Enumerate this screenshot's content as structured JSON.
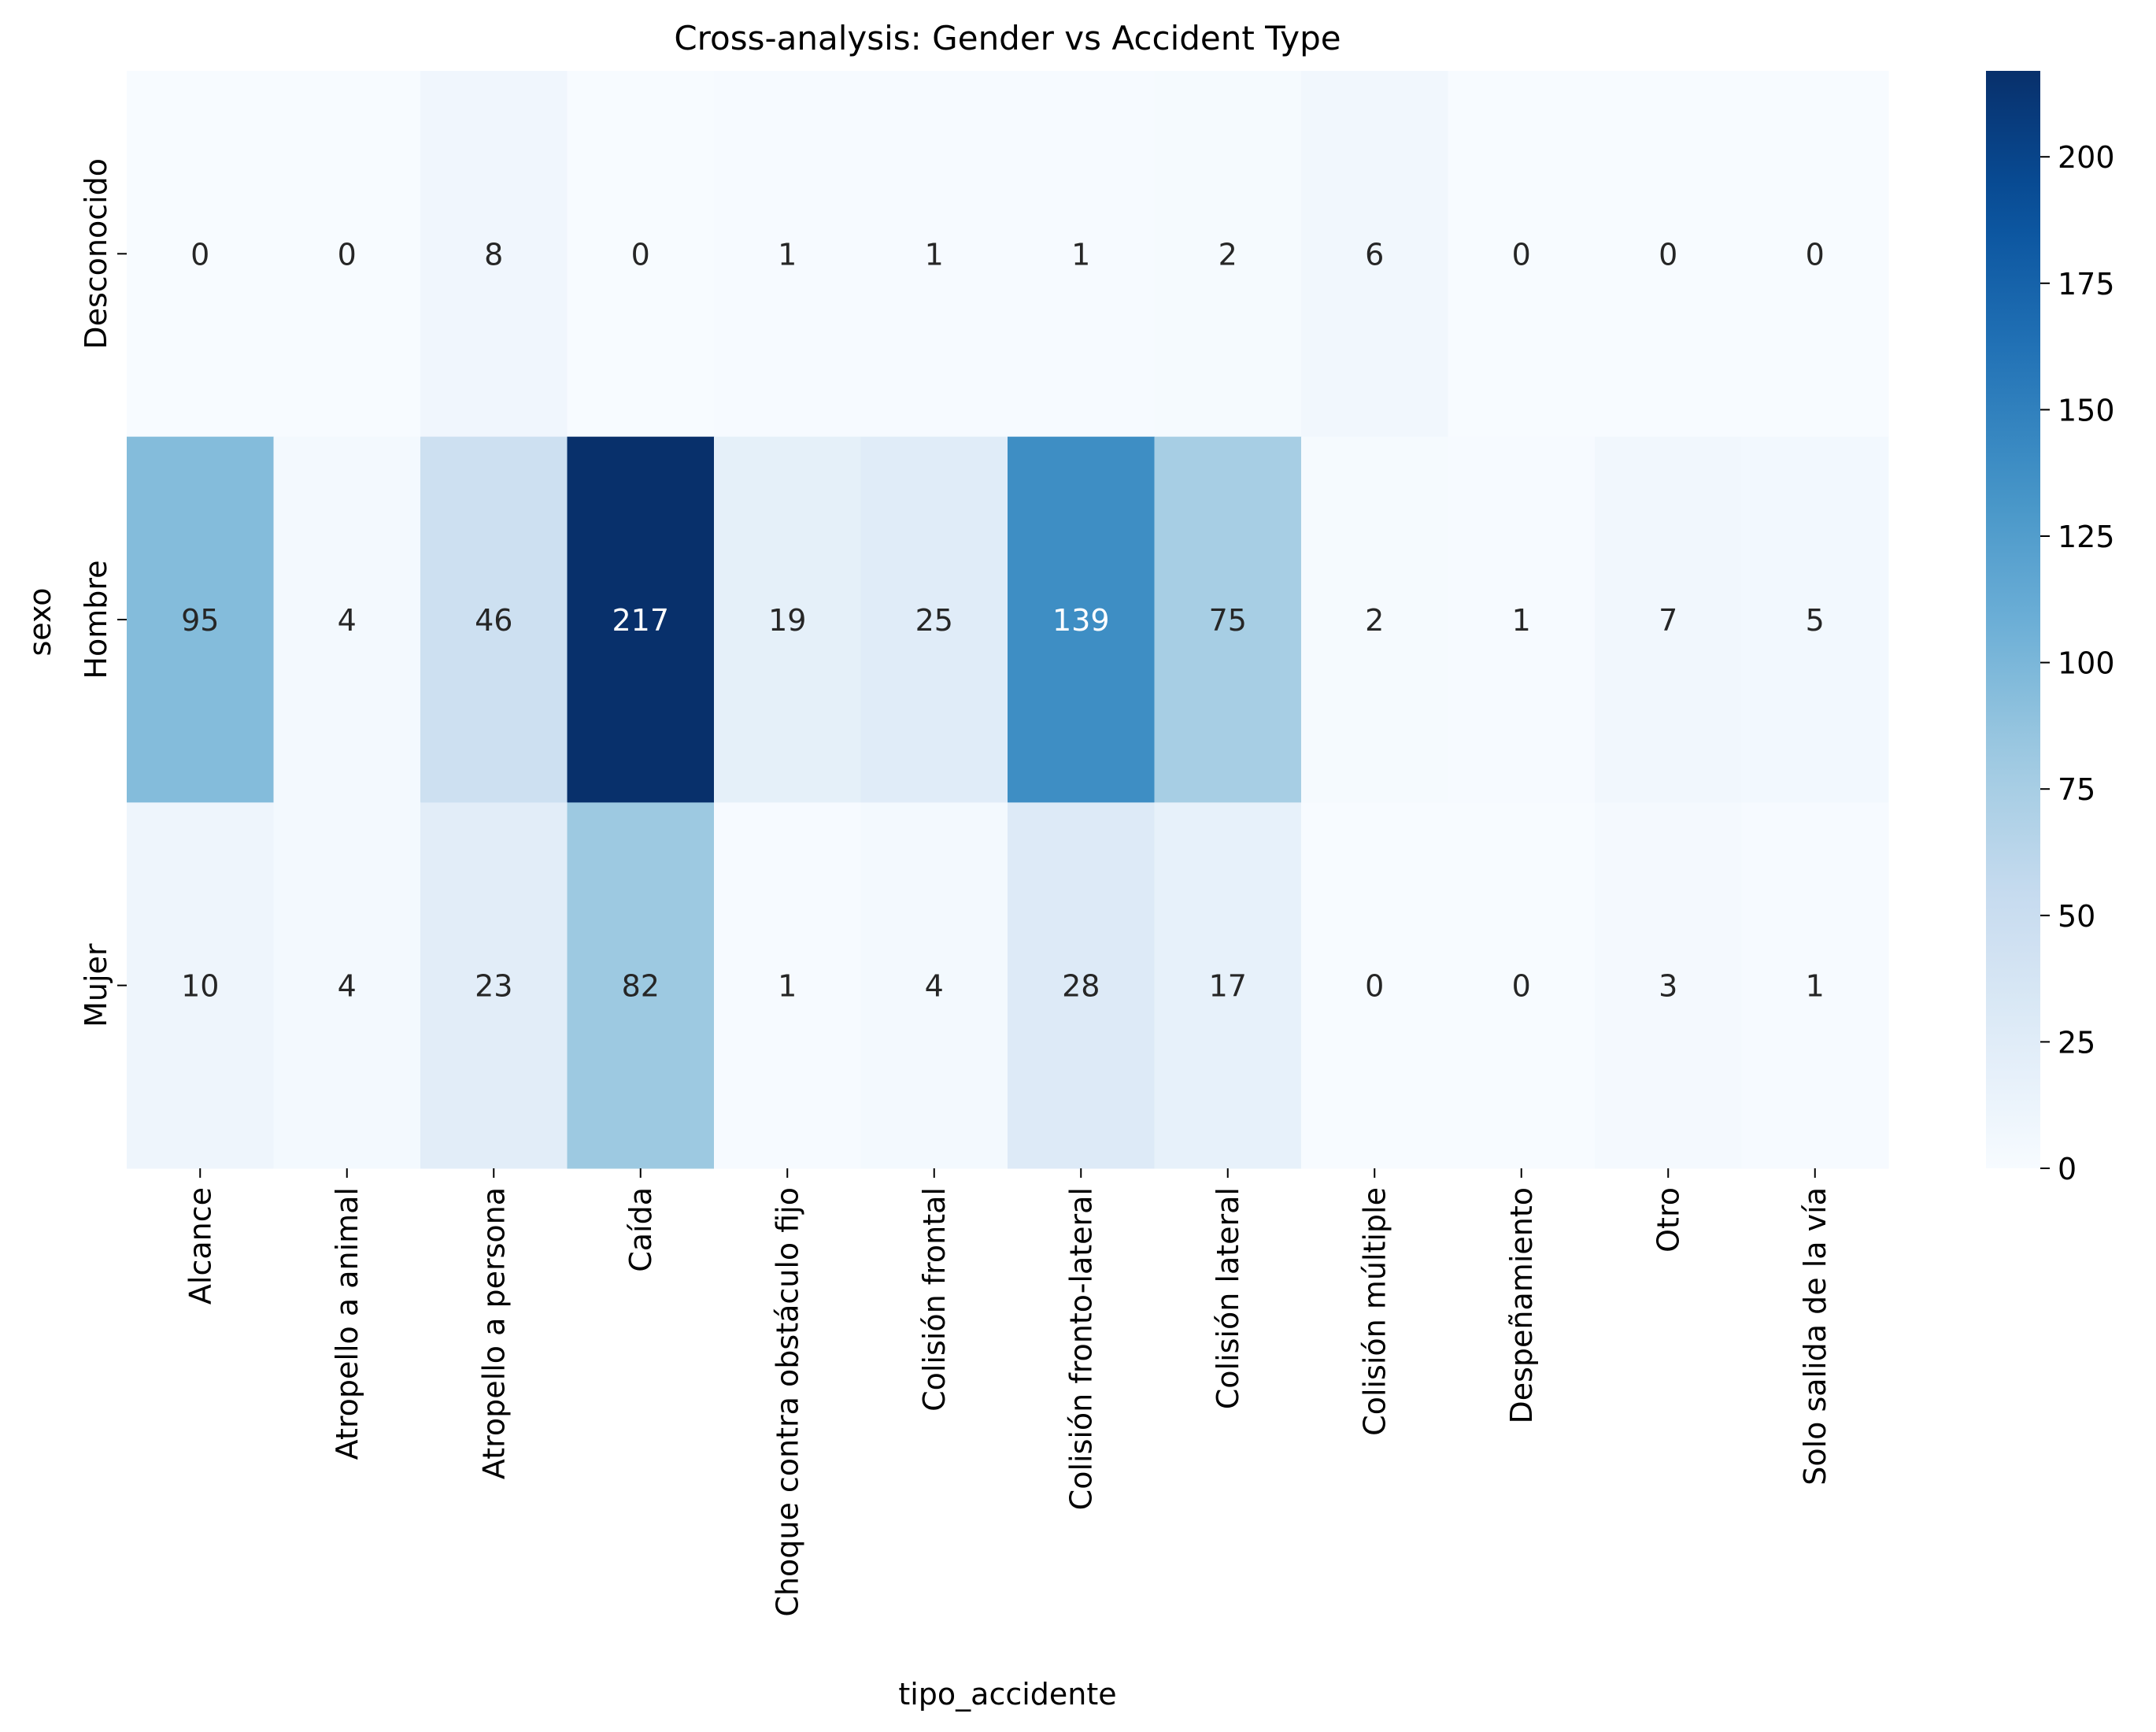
{
  "chart_data": {
    "type": "heatmap",
    "title": "Cross-analysis: Gender vs Accident Type",
    "xlabel": "tipo_accidente",
    "ylabel": "sexo",
    "rows": [
      "Desconocido",
      "Hombre",
      "Mujer"
    ],
    "columns": [
      "Alcance",
      "Atropello a animal",
      "Atropello a persona",
      "Caída",
      "Choque contra obstáculo fijo",
      "Colisión frontal",
      "Colisión fronto-lateral",
      "Colisión lateral",
      "Colisión múltiple",
      "Despeñamiento",
      "Otro",
      "Solo salida de la vía"
    ],
    "values": [
      [
        0,
        0,
        8,
        0,
        1,
        1,
        1,
        2,
        6,
        0,
        0,
        0
      ],
      [
        95,
        4,
        46,
        217,
        19,
        25,
        139,
        75,
        2,
        1,
        7,
        5
      ],
      [
        10,
        4,
        23,
        82,
        1,
        4,
        28,
        17,
        0,
        0,
        3,
        1
      ]
    ],
    "colormap": "Blues",
    "value_range": [
      0,
      217
    ],
    "colorbar_ticks": [
      0,
      25,
      50,
      75,
      100,
      125,
      150,
      175,
      200
    ],
    "annotations": true,
    "grid": false,
    "legend": "colorbar-right"
  }
}
